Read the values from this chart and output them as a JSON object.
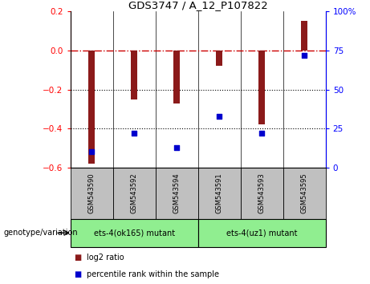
{
  "title": "GDS3747 / A_12_P107822",
  "samples": [
    "GSM543590",
    "GSM543592",
    "GSM543594",
    "GSM543591",
    "GSM543593",
    "GSM543595"
  ],
  "log2_ratio": [
    -0.58,
    -0.25,
    -0.27,
    -0.08,
    -0.38,
    0.15
  ],
  "percentile_rank": [
    10,
    22,
    13,
    33,
    22,
    72
  ],
  "ylim_left": [
    -0.6,
    0.2
  ],
  "ylim_right": [
    0,
    100
  ],
  "yticks_left": [
    -0.6,
    -0.4,
    -0.2,
    0.0,
    0.2
  ],
  "yticks_right": [
    0,
    25,
    50,
    75,
    100
  ],
  "bar_color": "#8B1A1A",
  "dot_color": "#0000CD",
  "hline_color": "#CC0000",
  "dotted_line_color": "#000000",
  "group1_label": "ets-4(ok165) mutant",
  "group2_label": "ets-4(uz1) mutant",
  "group1_indices": [
    0,
    1,
    2
  ],
  "group2_indices": [
    3,
    4,
    5
  ],
  "group1_bg": "#90EE90",
  "group2_bg": "#90EE90",
  "sample_bg": "#C0C0C0",
  "genotype_label": "genotype/variation",
  "legend_bar_label": "log2 ratio",
  "legend_dot_label": "percentile rank within the sample",
  "bar_width": 0.15
}
